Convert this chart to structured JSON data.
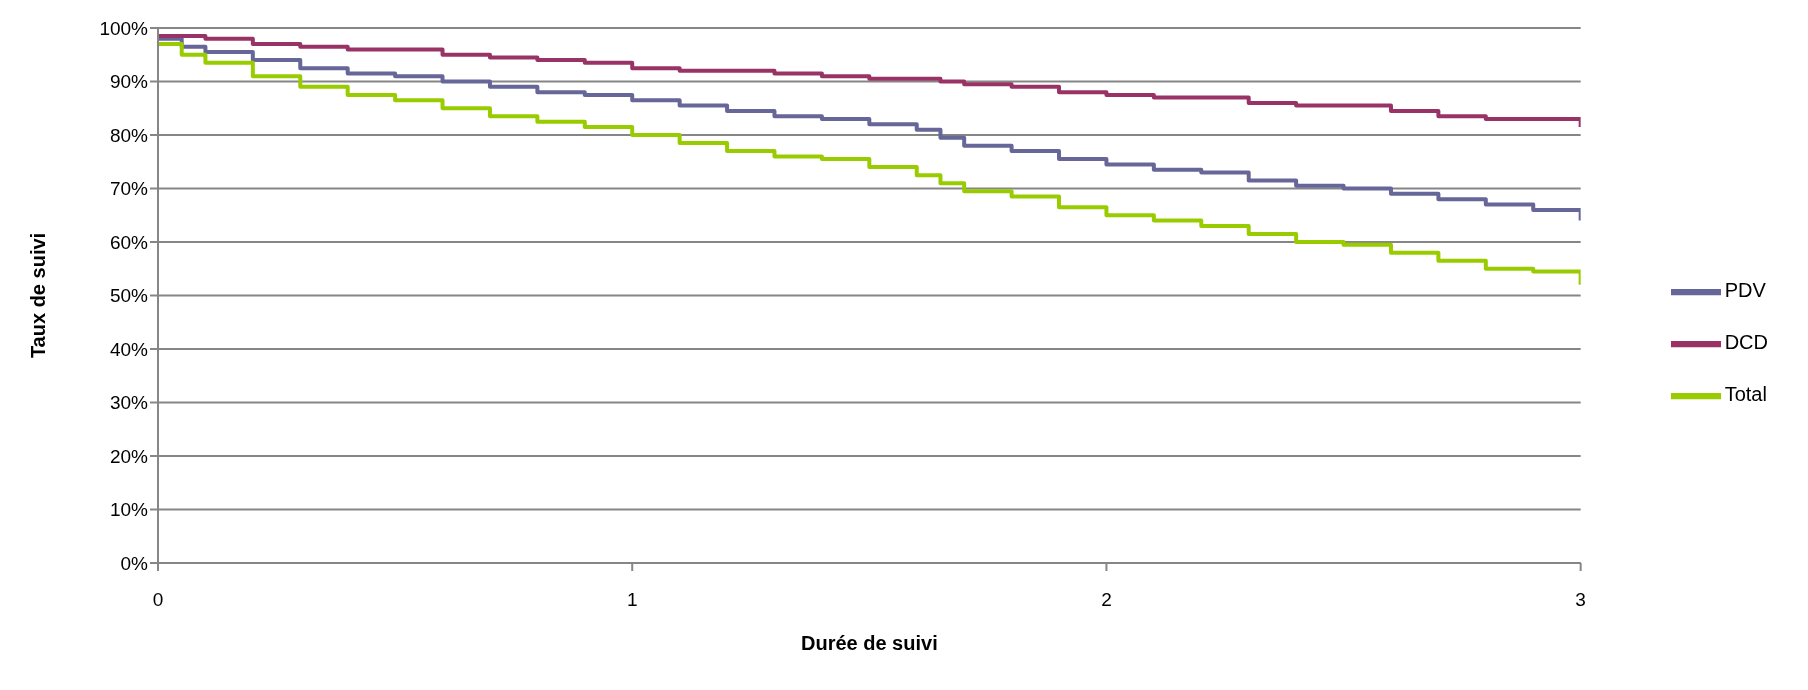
{
  "chart_data": {
    "type": "step",
    "xlabel": "Durée de suivi",
    "ylabel": "Taux de suivi",
    "x": [
      0,
      0.05,
      0.1,
      0.2,
      0.3,
      0.4,
      0.5,
      0.6,
      0.7,
      0.8,
      0.9,
      1.0,
      1.1,
      1.2,
      1.3,
      1.4,
      1.5,
      1.6,
      1.65,
      1.7,
      1.8,
      1.9,
      2.0,
      2.1,
      2.2,
      2.3,
      2.4,
      2.5,
      2.6,
      2.7,
      2.8,
      2.9,
      3.0
    ],
    "series": [
      {
        "name": "PDV",
        "color": "#666699",
        "values": [
          98,
          96.5,
          95.5,
          94,
          92.5,
          91.5,
          91,
          90,
          89,
          88,
          87.5,
          86.5,
          85.5,
          84.5,
          83.5,
          83,
          82,
          81,
          79.5,
          78,
          77,
          75.5,
          74.5,
          73.5,
          73,
          71.5,
          70.5,
          70,
          69,
          68,
          67,
          66,
          64
        ]
      },
      {
        "name": "DCD",
        "color": "#993366",
        "values": [
          98.5,
          98.5,
          98,
          97,
          96.5,
          96,
          96,
          95,
          94.5,
          94,
          93.5,
          92.5,
          92,
          92,
          91.5,
          91,
          90.5,
          90.5,
          90,
          89.5,
          89,
          88,
          87.5,
          87,
          87,
          86,
          85.5,
          85.5,
          84.5,
          83.5,
          83,
          83,
          81.5
        ]
      },
      {
        "name": "Total",
        "color": "#99cc00",
        "values": [
          97,
          95,
          93.5,
          91,
          89,
          87.5,
          86.5,
          85,
          83.5,
          82.5,
          81.5,
          80,
          78.5,
          77,
          76,
          75.5,
          74,
          72.5,
          71,
          69.5,
          68.5,
          66.5,
          65,
          64,
          63,
          61.5,
          60,
          59.5,
          58,
          56.5,
          55,
          54.5,
          52
        ]
      }
    ],
    "xlim": [
      0,
      3
    ],
    "xticks": [
      0,
      1,
      2,
      3
    ],
    "ylim": [
      0,
      100
    ],
    "yticks": [
      {
        "value": 0,
        "label": "0%"
      },
      {
        "value": 10,
        "label": "10%"
      },
      {
        "value": 20,
        "label": "20%"
      },
      {
        "value": 30,
        "label": "30%"
      },
      {
        "value": 40,
        "label": "40%"
      },
      {
        "value": 50,
        "label": "50%"
      },
      {
        "value": 60,
        "label": "60%"
      },
      {
        "value": 70,
        "label": "70%"
      },
      {
        "value": 80,
        "label": "80%"
      },
      {
        "value": 90,
        "label": "90%"
      },
      {
        "value": 100,
        "label": "100%"
      }
    ],
    "grid": "y",
    "legend": "right",
    "marker": "none",
    "line_style": "solid"
  }
}
